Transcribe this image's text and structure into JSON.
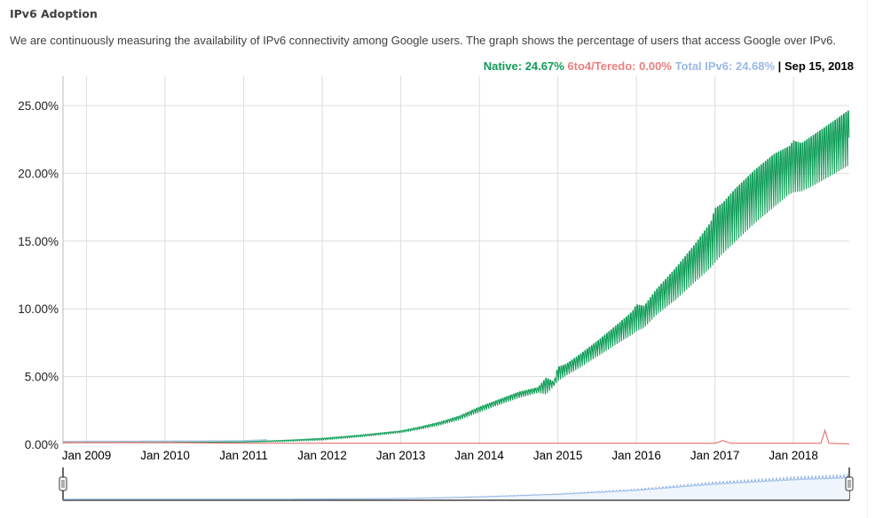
{
  "header": {
    "title": "IPv6 Adoption",
    "description": "We are continuously measuring the availability of IPv6 connectivity among Google users. The graph shows the percentage of users that access Google over IPv6."
  },
  "legend": {
    "native_label": "Native: 24.67%",
    "teredo_label": "6to4/Teredo: 0.00%",
    "total_label": "Total IPv6: 24.68%",
    "separator": " | ",
    "date_label": "Sep 15, 2018"
  },
  "colors": {
    "native": "#0f9d58",
    "teredo": "#e57373",
    "total": "#9ab9e3",
    "grid": "#dddddd",
    "axis": "#bbbbbb",
    "navigator_fill": "#eef5fd",
    "navigator_line": "#8fb3e6"
  },
  "chart_data": {
    "type": "area",
    "title": "IPv6 Adoption",
    "xlabel": "",
    "ylabel": "",
    "ylim": [
      0,
      25
    ],
    "xlim": [
      "2008-09",
      "2018-09-15"
    ],
    "grid": true,
    "legend_position": "top-right",
    "y_ticks": [
      "0.00%",
      "5.00%",
      "10.00%",
      "15.00%",
      "20.00%",
      "25.00%"
    ],
    "y_tick_values": [
      0,
      5,
      10,
      15,
      20,
      25
    ],
    "x_ticks": [
      "Jan 2009",
      "Jan 2010",
      "Jan 2011",
      "Jan 2012",
      "Jan 2013",
      "Jan 2014",
      "Jan 2015",
      "Jan 2016",
      "Jan 2017",
      "Jan 2018"
    ],
    "x_tick_values": [
      2009.0,
      2010.0,
      2011.0,
      2012.0,
      2013.0,
      2014.0,
      2015.0,
      2016.0,
      2017.0,
      2018.0
    ],
    "series": [
      {
        "name": "Native",
        "note": "weekly oscillation band; low = weekday values, high = weekend values",
        "x": [
          2008.7,
          2009.0,
          2009.5,
          2010.0,
          2010.5,
          2011.0,
          2011.5,
          2012.0,
          2012.5,
          2013.0,
          2013.25,
          2013.5,
          2013.75,
          2014.0,
          2014.25,
          2014.5,
          2014.75,
          2014.85,
          2014.95,
          2015.0,
          2015.1,
          2015.25,
          2015.5,
          2015.75,
          2015.95,
          2016.0,
          2016.1,
          2016.25,
          2016.5,
          2016.75,
          2016.95,
          2017.0,
          2017.1,
          2017.25,
          2017.5,
          2017.75,
          2017.95,
          2018.0,
          2018.1,
          2018.25,
          2018.5,
          2018.71
        ],
        "low": [
          0.1,
          0.12,
          0.13,
          0.12,
          0.13,
          0.15,
          0.2,
          0.3,
          0.55,
          0.85,
          1.1,
          1.4,
          1.8,
          2.35,
          2.9,
          3.4,
          3.8,
          3.6,
          4.3,
          4.6,
          5.0,
          5.5,
          6.4,
          7.3,
          8.0,
          8.2,
          8.5,
          9.4,
          10.5,
          11.8,
          12.8,
          13.1,
          13.8,
          14.6,
          16.0,
          17.2,
          18.2,
          18.3,
          18.4,
          18.8,
          19.6,
          20.3
        ],
        "high": [
          0.14,
          0.16,
          0.17,
          0.17,
          0.18,
          0.2,
          0.3,
          0.45,
          0.7,
          1.0,
          1.3,
          1.65,
          2.1,
          2.75,
          3.3,
          3.85,
          4.2,
          4.9,
          4.6,
          5.7,
          5.9,
          6.5,
          7.6,
          8.8,
          9.8,
          10.3,
          10.2,
          11.4,
          13.0,
          14.8,
          16.4,
          17.4,
          17.8,
          18.8,
          20.2,
          21.4,
          22.0,
          22.4,
          22.2,
          22.8,
          23.8,
          24.67
        ]
      },
      {
        "name": "6to4/Teredo",
        "x": [
          2008.7,
          2009.0,
          2010.0,
          2011.0,
          2012.0,
          2013.0,
          2014.0,
          2015.0,
          2016.0,
          2017.0,
          2017.1,
          2017.2,
          2018.0,
          2018.35,
          2018.4,
          2018.45,
          2018.71
        ],
        "values": [
          0.02,
          0.02,
          0.02,
          0.01,
          0.01,
          0.01,
          0.01,
          0.01,
          0.01,
          0.01,
          0.05,
          0.01,
          0.01,
          0.01,
          0.2,
          0.01,
          0.0
        ]
      },
      {
        "name": "Total IPv6",
        "note": "shown in range navigator below the main chart",
        "x": [
          2008.7,
          2009.0,
          2010.0,
          2011.0,
          2012.0,
          2013.0,
          2014.0,
          2015.0,
          2016.0,
          2017.0,
          2018.0,
          2018.71
        ],
        "values": [
          0.14,
          0.16,
          0.17,
          0.2,
          0.45,
          1.0,
          2.75,
          5.7,
          10.3,
          17.4,
          22.4,
          24.68
        ]
      }
    ]
  },
  "navigator": {
    "left_handle_label": "range-start",
    "right_handle_label": "range-end"
  }
}
